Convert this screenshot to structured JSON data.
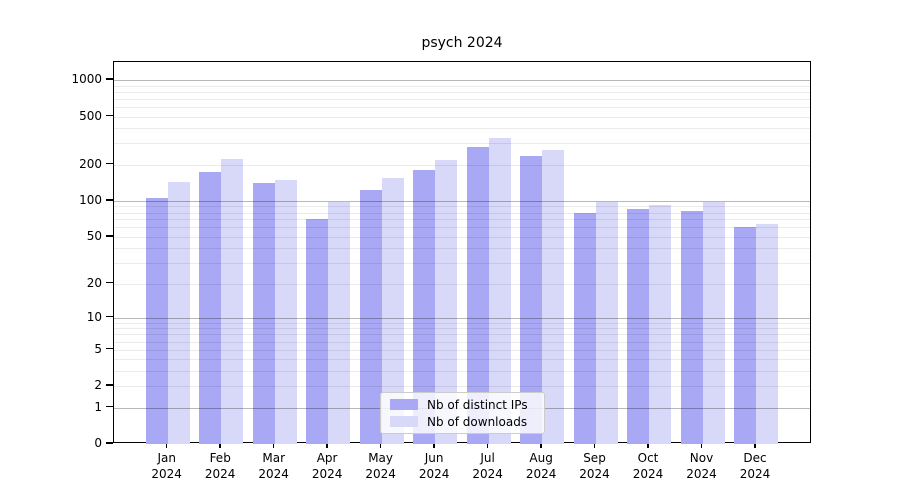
{
  "chart_data": {
    "type": "bar",
    "title": "psych 2024",
    "xlabel": "",
    "ylabel": "",
    "y_scale": "log10(value+1), 0 at baseline",
    "ylim": [
      0,
      1400
    ],
    "grid": true,
    "legend_position": "lower center",
    "year_label": "2024",
    "categories": [
      "Jan",
      "Feb",
      "Mar",
      "Apr",
      "May",
      "Jun",
      "Jul",
      "Aug",
      "Sep",
      "Oct",
      "Nov",
      "Dec"
    ],
    "series": [
      {
        "name": "Nb of distinct IPs",
        "color": "#a8a8f5",
        "values": [
          105,
          175,
          141,
          70,
          123,
          182,
          282,
          235,
          80,
          86,
          83,
          61
        ]
      },
      {
        "name": "Nb of downloads",
        "color": "#d8d8f9",
        "values": [
          143,
          221,
          150,
          98,
          154,
          220,
          330,
          266,
          97,
          92,
          98,
          64
        ]
      }
    ],
    "y_ticks": [
      1000,
      500,
      200,
      100,
      50,
      20,
      10,
      5,
      2,
      1,
      0
    ],
    "y_major_gridlines": [
      1,
      10,
      100,
      1000
    ],
    "y_minor_gridlines": [
      2,
      3,
      4,
      5,
      6,
      7,
      8,
      9,
      20,
      30,
      40,
      50,
      60,
      70,
      80,
      90,
      200,
      300,
      400,
      500,
      600,
      700,
      800,
      900
    ]
  }
}
